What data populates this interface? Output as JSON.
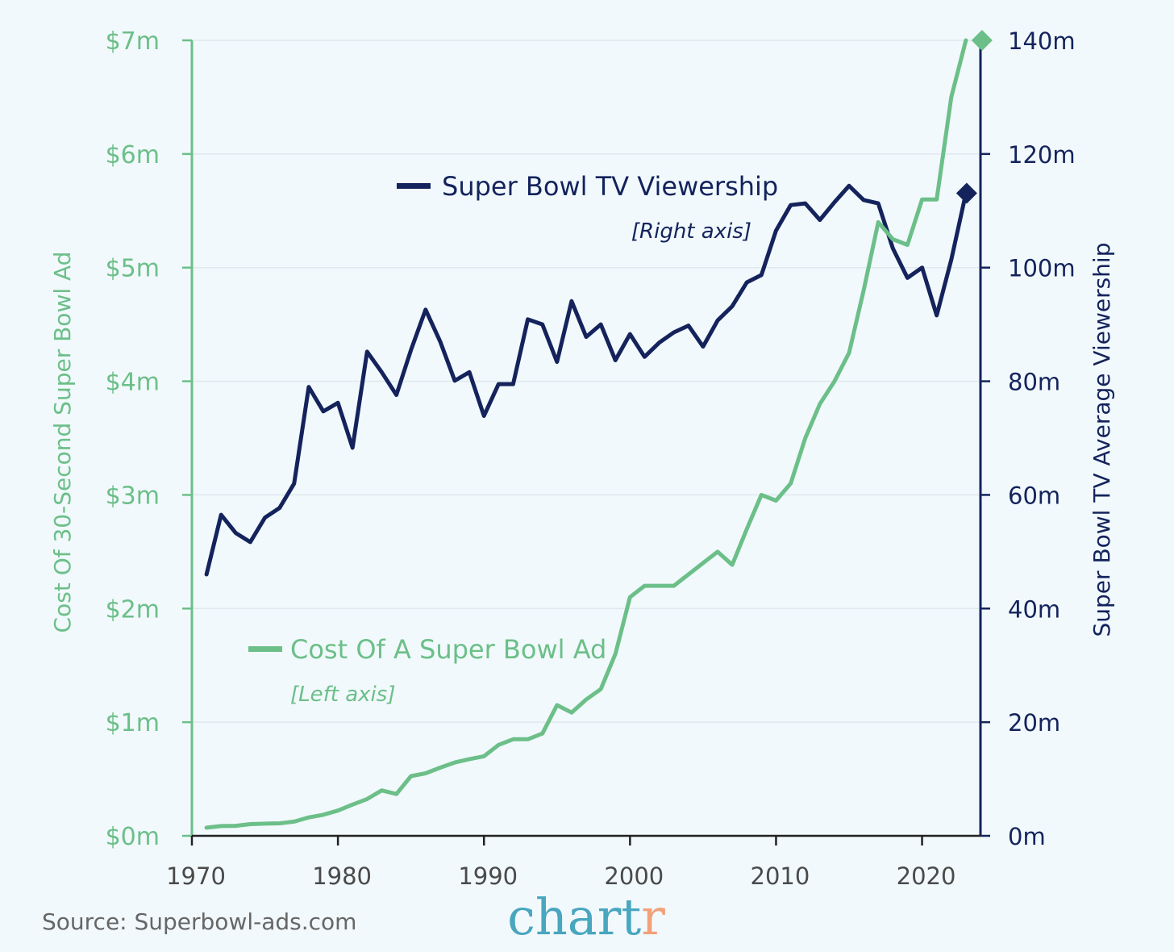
{
  "chart_data": {
    "type": "line",
    "x": [
      1971,
      1972,
      1973,
      1974,
      1975,
      1976,
      1977,
      1978,
      1979,
      1980,
      1981,
      1982,
      1983,
      1984,
      1985,
      1986,
      1987,
      1988,
      1989,
      1990,
      1991,
      1992,
      1993,
      1994,
      1995,
      1996,
      1997,
      1998,
      1999,
      2000,
      2001,
      2002,
      2003,
      2004,
      2005,
      2006,
      2007,
      2008,
      2009,
      2010,
      2011,
      2012,
      2013,
      2014,
      2015,
      2016,
      2017,
      2018,
      2019,
      2020,
      2021,
      2022,
      2023
    ],
    "xlim": [
      1970,
      2024
    ],
    "xticks": [
      "1970",
      "1980",
      "1990",
      "2000",
      "2010",
      "2020"
    ],
    "series": [
      {
        "name": "Super Bowl TV Viewership",
        "note": "[Right axis]",
        "axis": "right",
        "color": "#14235c",
        "values": [
          46,
          56.5,
          53.3,
          51.7,
          56,
          57.7,
          62,
          79,
          74.7,
          76.2,
          68.3,
          85.2,
          81.6,
          77.6,
          85.5,
          92.6,
          87,
          80.1,
          81.6,
          73.9,
          79.5,
          79.5,
          90.9,
          90,
          83.4,
          94.1,
          87.8,
          90,
          83.7,
          88.3,
          84.3,
          86.8,
          88.6,
          89.8,
          86.1,
          90.7,
          93.2,
          97.4,
          98.7,
          106.5,
          111,
          111.3,
          108.4,
          111.5,
          114.4,
          111.9,
          111.3,
          103.4,
          98.2,
          100,
          91.6,
          101.4,
          113.1
        ],
        "end_marker": 113.1
      },
      {
        "name": "Cost Of A Super Bowl Ad",
        "note": "[Left axis]",
        "axis": "left",
        "color": "#6cbf88",
        "values": [
          0.072,
          0.086,
          0.088,
          0.103,
          0.107,
          0.11,
          0.125,
          0.162,
          0.185,
          0.222,
          0.275,
          0.324,
          0.4,
          0.368,
          0.525,
          0.55,
          0.6,
          0.645,
          0.675,
          0.7,
          0.8,
          0.85,
          0.85,
          0.9,
          1.15,
          1.085,
          1.2,
          1.291,
          1.6,
          2.1,
          2.2,
          2.2,
          2.2,
          2.3,
          2.4,
          2.5,
          2.385,
          2.7,
          3.0,
          2.95,
          3.1,
          3.5,
          3.8,
          4.0,
          4.25,
          4.8,
          5.4,
          5.25,
          5.2,
          5.6,
          5.6,
          6.5,
          7.0
        ],
        "end_marker": 7.0
      }
    ],
    "left_axis": {
      "label": "Cost Of 30-Second Super Bowl Ad",
      "ylim": [
        0,
        7
      ],
      "ticks": [
        "$0m",
        "$1m",
        "$2m",
        "$3m",
        "$4m",
        "$5m",
        "$6m",
        "$7m"
      ]
    },
    "right_axis": {
      "label": "Super Bowl TV Average Viewership",
      "ylim": [
        0,
        140
      ],
      "ticks": [
        "0m",
        "20m",
        "40m",
        "60m",
        "80m",
        "100m",
        "120m",
        "140m"
      ]
    },
    "grid": true
  },
  "source": "Source: Superbowl-ads.com",
  "logo": {
    "main": "chart",
    "accent": "r",
    "color_main": "#49a6bf",
    "color_accent": "#f3a07a"
  }
}
